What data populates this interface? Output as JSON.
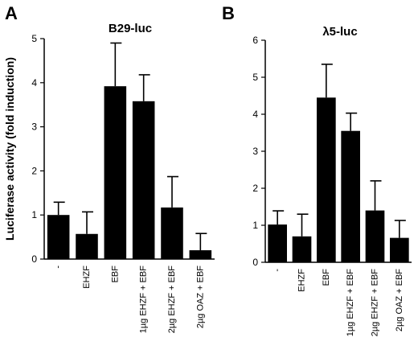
{
  "panels": {
    "a_letter": "A",
    "b_letter": "B"
  },
  "chart_data": [
    {
      "type": "bar",
      "title": "B29-luc",
      "ylabel": "Luciferase activity (fold induction)",
      "xlabel": "",
      "categories": [
        "-",
        "EHZF",
        "EBF",
        "1µg EHZF + EBF",
        "2µg EHZF + EBF",
        "2µg OAZ + EBF"
      ],
      "values": [
        1.0,
        0.57,
        3.92,
        3.58,
        1.17,
        0.2
      ],
      "errors": [
        0.29,
        0.5,
        0.98,
        0.6,
        0.7,
        0.38
      ],
      "ylim": [
        0,
        5
      ],
      "yticks": [
        0,
        1,
        2,
        3,
        4,
        5
      ],
      "grid": false,
      "bar_color": "#000000"
    },
    {
      "type": "bar",
      "title": "λ5-luc",
      "ylabel": "",
      "xlabel": "",
      "categories": [
        "-",
        "EHZF",
        "EBF",
        "1µg EHZF + EBF",
        "2µg EHZF + EBF",
        "2µg OAZ + EBF"
      ],
      "values": [
        1.02,
        0.7,
        4.45,
        3.55,
        1.4,
        0.66
      ],
      "errors": [
        0.37,
        0.6,
        0.9,
        0.48,
        0.8,
        0.47
      ],
      "ylim": [
        0,
        6
      ],
      "yticks": [
        0,
        1,
        2,
        3,
        4,
        5,
        6
      ],
      "grid": false,
      "bar_color": "#000000"
    }
  ]
}
